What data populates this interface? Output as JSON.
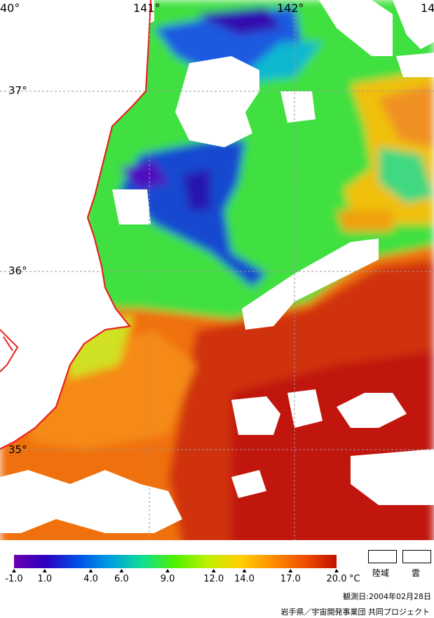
{
  "map": {
    "lon_labels": [
      "40°",
      "141°",
      "142°",
      "14"
    ],
    "lat_labels": [
      "37°",
      "36°",
      "35°"
    ]
  },
  "colorbar": {
    "ticks": [
      "-1.0",
      "1.0",
      "4.0",
      "6.0",
      "9.0",
      "12.0",
      "14.0",
      "17.0",
      "20.0"
    ],
    "unit": "°C",
    "stops": [
      "#6a00b0",
      "#2a00c0",
      "#0050e8",
      "#00a0e0",
      "#10e090",
      "#50f000",
      "#c0f000",
      "#ffd000",
      "#ff9000",
      "#f05000",
      "#c01000"
    ]
  },
  "legend": {
    "land": "陸域",
    "cloud": "雲"
  },
  "footer": {
    "observation_date": "観測日:2004年02月28日",
    "credit": "岩手県／宇宙開発事業団 共同プロジェクト"
  },
  "colors": {
    "coast": "#e82020",
    "warm": "#d84010",
    "hot": "#c01808",
    "green": "#50e030",
    "blue": "#1848d0",
    "purple": "#5010c0"
  }
}
